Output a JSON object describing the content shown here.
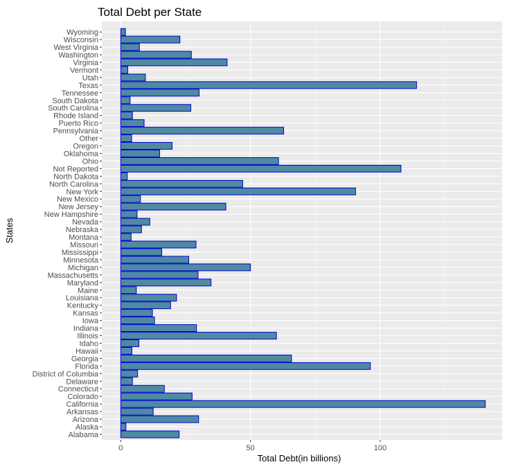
{
  "chart_data": {
    "type": "bar",
    "orientation": "horizontal",
    "title": "Total Debt per State",
    "xlabel": "Total Debt(in billions)",
    "ylabel": "States",
    "xlim": [
      -7.3,
      147
    ],
    "xticks": [
      0,
      50,
      100
    ],
    "grid": true,
    "colors": {
      "bar_fill": "#4f8aa3",
      "bar_stroke": "#0000cc",
      "panel": "#ebebeb",
      "grid": "#ffffff"
    },
    "categories": [
      "Alabama",
      "Alaska",
      "Arizona",
      "Arkansas",
      "California",
      "Colorado",
      "Connecticut",
      "Delaware",
      "District of Columbia",
      "Florida",
      "Georgia",
      "Hawaii",
      "Idaho",
      "Illinois",
      "Indiana",
      "Iowa",
      "Kansas",
      "Kentucky",
      "Louisiana",
      "Maine",
      "Maryland",
      "Massachusetts",
      "Michigan",
      "Minnesota",
      "Mississippi",
      "Missouri",
      "Montana",
      "Nebraska",
      "Nevada",
      "New Hampshire",
      "New Jersey",
      "New Mexico",
      "New York",
      "North Carolina",
      "North Dakota",
      "Not Reported",
      "Ohio",
      "Oklahoma",
      "Oregon",
      "Other",
      "Pennsylvania",
      "Puerto Rico",
      "Rhode Island",
      "South Carolina",
      "South Dakota",
      "Tennessee",
      "Texas",
      "Utah",
      "Vermont",
      "Virginia",
      "Washington",
      "West Virginia",
      "Wisconsin",
      "Wyoming"
    ],
    "values": [
      22.5,
      2.0,
      30.0,
      12.5,
      140.5,
      27.5,
      16.8,
      4.5,
      6.5,
      96.2,
      65.8,
      4.3,
      7.0,
      60.0,
      29.2,
      13.0,
      12.2,
      19.2,
      21.5,
      6.0,
      34.8,
      29.8,
      50.0,
      26.2,
      15.8,
      29.0,
      4.0,
      8.0,
      11.2,
      6.3,
      40.5,
      7.6,
      90.5,
      47.0,
      2.5,
      108.0,
      60.8,
      15.0,
      19.8,
      4.2,
      62.8,
      9.0,
      4.5,
      27.0,
      3.6,
      30.2,
      114.0,
      9.5,
      2.7,
      41.0,
      27.2,
      7.2,
      22.8,
      1.8
    ]
  }
}
